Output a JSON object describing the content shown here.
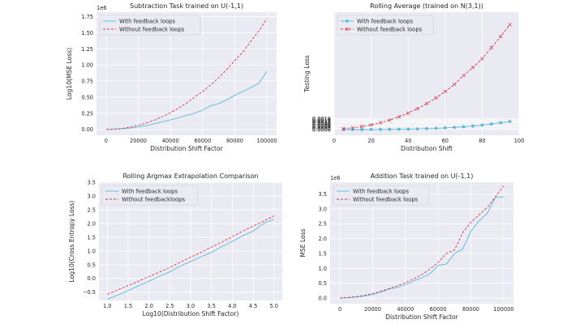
{
  "colors": {
    "panel_bg": "#eaeaf2",
    "grid": "#ffffff",
    "with_feedback": "#5bb8d8",
    "without_feedback": "#d9344a",
    "text": "#262626"
  },
  "chart_data": [
    {
      "id": "subtraction",
      "type": "line",
      "title": "Subtraction Task trained on U(-1,1)",
      "xlabel": "Distribution Shift Factor",
      "ylabel": "Log10(MSE Loss)",
      "y_exponent_label": "1e6",
      "xlim": [
        -6000,
        106000
      ],
      "ylim": [
        -0.09,
        1.82
      ],
      "xticks": [
        0,
        20000,
        40000,
        60000,
        80000,
        100000
      ],
      "xtick_labels": [
        "0",
        "20000",
        "40000",
        "60000",
        "80000",
        "100000"
      ],
      "yticks": [
        0,
        0.25,
        0.5,
        0.75,
        1.0,
        1.25,
        1.5,
        1.75
      ],
      "ytick_labels": [
        "0.00",
        "0.25",
        "0.50",
        "0.75",
        "1.00",
        "1.25",
        "1.50",
        "1.75"
      ],
      "legend_position": "top-left",
      "series": [
        {
          "name": "With feedback loops",
          "style": "solid",
          "x": [
            0,
            5000,
            10000,
            15000,
            20000,
            25000,
            30000,
            35000,
            40000,
            45000,
            50000,
            55000,
            60000,
            65000,
            70000,
            75000,
            80000,
            85000,
            90000,
            95000,
            100000
          ],
          "values": [
            0.0,
            0.002,
            0.01,
            0.02,
            0.04,
            0.06,
            0.09,
            0.12,
            0.15,
            0.18,
            0.22,
            0.25,
            0.3,
            0.37,
            0.4,
            0.46,
            0.53,
            0.59,
            0.65,
            0.72,
            0.9
          ]
        },
        {
          "name": "Without feedback loops",
          "style": "dashed",
          "x": [
            0,
            5000,
            10000,
            15000,
            20000,
            25000,
            30000,
            35000,
            40000,
            45000,
            50000,
            55000,
            60000,
            65000,
            70000,
            75000,
            80000,
            85000,
            90000,
            95000,
            100000
          ],
          "values": [
            0.0,
            0.004,
            0.015,
            0.035,
            0.065,
            0.1,
            0.145,
            0.2,
            0.26,
            0.33,
            0.41,
            0.5,
            0.59,
            0.69,
            0.8,
            0.93,
            1.07,
            1.2,
            1.37,
            1.53,
            1.72
          ]
        }
      ]
    },
    {
      "id": "rolling-average",
      "type": "line",
      "title": "Rolling Average (trained on N(3,1))",
      "xlabel": "Distribution Shift",
      "ylabel": "Testing Loss",
      "xlim": [
        0,
        100
      ],
      "ylim": [
        -0.0008,
        0.0169
      ],
      "xticks": [
        0,
        20,
        40,
        60,
        80,
        100
      ],
      "xtick_labels": [
        "0",
        "20",
        "40",
        "60",
        "80",
        "100"
      ],
      "yticks": [
        0,
        0.0002,
        0.0004,
        0.0006,
        0.0008,
        0.001,
        0.0012,
        0.0014,
        0.0016
      ],
      "ytick_labels": [
        "0.0000",
        "0.0002",
        "0.0004",
        "0.0006",
        "0.0008",
        "0.0010",
        "0.0012",
        "0.0014",
        "0.0016"
      ],
      "legend_position": "top-left",
      "series": [
        {
          "name": "With feedback loops",
          "style": "solid",
          "marker": "circle",
          "x": [
            5,
            10,
            15,
            20,
            25,
            30,
            35,
            40,
            45,
            50,
            55,
            60,
            65,
            70,
            75,
            80,
            85,
            90,
            95
          ],
          "values": [
            0.0,
            1e-05,
            2e-05,
            3e-05,
            4e-05,
            5e-05,
            7e-05,
            9e-05,
            0.00012,
            0.00016,
            0.0002,
            0.00026,
            0.00033,
            0.00042,
            0.00053,
            0.00066,
            0.00082,
            0.001,
            0.00118
          ]
        },
        {
          "name": "Without feedback loops",
          "style": "dashed",
          "marker": "x",
          "x": [
            5,
            10,
            15,
            20,
            25,
            30,
            35,
            40,
            45,
            50,
            55,
            60,
            65,
            70,
            75,
            80,
            85,
            90,
            95
          ],
          "values": [
            0.00015,
            0.00027,
            0.00045,
            0.00069,
            0.001,
            0.00139,
            0.00185,
            0.00239,
            0.00303,
            0.00375,
            0.00455,
            0.0055,
            0.0065,
            0.00781,
            0.00895,
            0.0102,
            0.0118,
            0.0134,
            0.0151
          ]
        }
      ]
    },
    {
      "id": "argmax",
      "type": "line",
      "title": "Rolling Argmax Extrapolation Comparison",
      "xlabel": "Log10(Distribution Shift Factor)",
      "ylabel": "Log10(Cross Entropy Loss)",
      "xlim": [
        0.8,
        5.2
      ],
      "ylim": [
        -0.8,
        3.5
      ],
      "xticks": [
        1.0,
        1.5,
        2.0,
        2.5,
        3.0,
        3.5,
        4.0,
        4.5,
        5.0
      ],
      "xtick_labels": [
        "1.0",
        "1.5",
        "2.0",
        "2.5",
        "3.0",
        "3.5",
        "4.0",
        "4.5",
        "5.0"
      ],
      "yticks": [
        -0.5,
        0,
        0.5,
        1.0,
        1.5,
        2.0,
        2.5,
        3.0,
        3.5
      ],
      "ytick_labels": [
        "−0.5",
        "0.0",
        "0.5",
        "1.0",
        "1.5",
        "2.0",
        "2.5",
        "3.0",
        "3.5"
      ],
      "legend_position": "top-left",
      "series": [
        {
          "name": "With feedback loops",
          "style": "solid",
          "x": [
            1.0,
            1.25,
            1.5,
            1.75,
            2.0,
            2.25,
            2.5,
            2.75,
            3.0,
            3.25,
            3.5,
            3.75,
            4.0,
            4.25,
            4.5,
            4.75,
            5.0
          ],
          "values": [
            -0.75,
            -0.61,
            -0.44,
            -0.27,
            -0.1,
            0.08,
            0.24,
            0.45,
            0.62,
            0.79,
            0.95,
            1.16,
            1.35,
            1.55,
            1.72,
            2.0,
            2.15
          ]
        },
        {
          "name": "Without feedbackloops",
          "style": "dashed",
          "x": [
            1.0,
            1.25,
            1.5,
            1.75,
            2.0,
            2.25,
            2.5,
            2.75,
            3.0,
            3.25,
            3.5,
            3.75,
            4.0,
            4.25,
            4.5,
            4.75,
            5.0
          ],
          "values": [
            -0.58,
            -0.42,
            -0.26,
            -0.1,
            0.07,
            0.23,
            0.4,
            0.59,
            0.77,
            0.95,
            1.14,
            1.32,
            1.52,
            1.72,
            1.9,
            2.08,
            2.28
          ]
        }
      ]
    },
    {
      "id": "addition",
      "type": "line",
      "title": "Addition Task trained on U(-1,1)",
      "xlabel": "Distribution Shift Factor",
      "ylabel": "MSE Loss",
      "y_exponent_label": "1e6",
      "xlim": [
        -6000,
        106000
      ],
      "ylim": [
        -0.19,
        3.9
      ],
      "xticks": [
        0,
        20000,
        40000,
        60000,
        80000,
        100000
      ],
      "xtick_labels": [
        "0",
        "20000",
        "40000",
        "60000",
        "80000",
        "100000"
      ],
      "yticks": [
        0,
        0.5,
        1.0,
        1.5,
        2.0,
        2.5,
        3.0,
        3.5
      ],
      "ytick_labels": [
        "0.0",
        "0.5",
        "1.0",
        "1.5",
        "2.0",
        "2.5",
        "3.0",
        "3.5"
      ],
      "legend_position": "top-left",
      "series": [
        {
          "name": "With feedback loops",
          "style": "solid",
          "x": [
            0,
            5000,
            10000,
            15000,
            20000,
            25000,
            30000,
            35000,
            40000,
            45000,
            50000,
            55000,
            60000,
            65000,
            70000,
            75000,
            80000,
            85000,
            90000,
            95000,
            100000
          ],
          "values": [
            0.0,
            0.01,
            0.03,
            0.07,
            0.12,
            0.2,
            0.3,
            0.36,
            0.45,
            0.57,
            0.68,
            0.82,
            1.1,
            1.15,
            1.5,
            1.65,
            2.25,
            2.6,
            2.85,
            3.4,
            3.4
          ]
        },
        {
          "name": "Without feedback loops",
          "style": "dashed",
          "x": [
            0,
            5000,
            10000,
            15000,
            20000,
            25000,
            30000,
            35000,
            40000,
            45000,
            50000,
            55000,
            60000,
            65000,
            70000,
            75000,
            80000,
            85000,
            90000,
            95000,
            100000
          ],
          "values": [
            0.0,
            0.02,
            0.05,
            0.09,
            0.15,
            0.23,
            0.32,
            0.41,
            0.52,
            0.64,
            0.79,
            0.98,
            1.2,
            1.5,
            1.62,
            2.2,
            2.55,
            2.8,
            3.05,
            3.4,
            3.78
          ]
        }
      ]
    }
  ]
}
